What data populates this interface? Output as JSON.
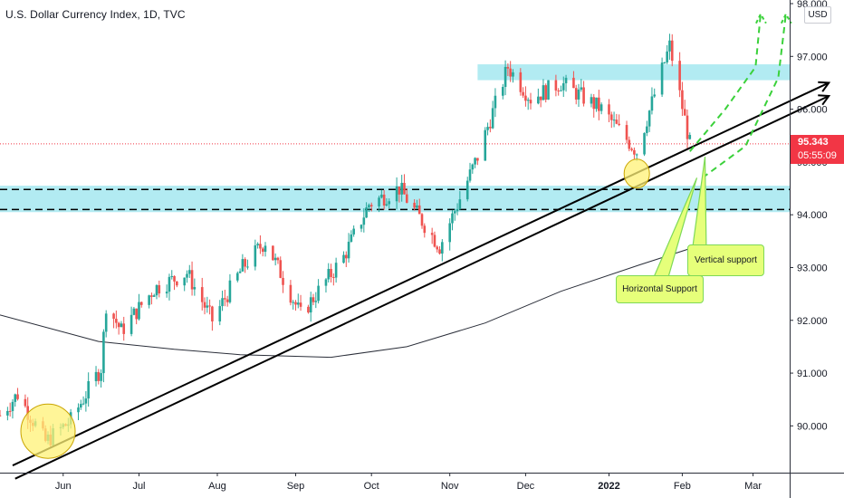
{
  "header": {
    "title": "U.S. Dollar Currency Index, 1D, TVC",
    "currency": "USD"
  },
  "price_box": {
    "price": "95.343",
    "timer": "05:55:09",
    "color": "#f23645"
  },
  "annotations": {
    "vertical_support": "Vertical support",
    "horizontal_support": "Horizontal Support"
  },
  "colors": {
    "up_candle": "#26a69a",
    "down_candle": "#ef5350",
    "zone": "#b2ebf2",
    "forecast": "#3ad13a",
    "highlight": "#fff176",
    "callout_bg": "#e6ff7a",
    "callout_border": "#7ed957"
  },
  "chart_data": {
    "type": "candlestick",
    "title": "U.S. Dollar Currency Index, 1D, TVC",
    "ylim": [
      89.2,
      98.0
    ],
    "y_ticks": [
      "98.000",
      "97.000",
      "96.000",
      "95.000",
      "94.000",
      "93.000",
      "92.000",
      "91.000",
      "90.000"
    ],
    "x_ticks": [
      {
        "label": "Jun",
        "date": "2021-06-01",
        "bold": false
      },
      {
        "label": "Jul",
        "date": "2021-07-01",
        "bold": false
      },
      {
        "label": "Aug",
        "date": "2021-08-01",
        "bold": false
      },
      {
        "label": "Sep",
        "date": "2021-09-01",
        "bold": false
      },
      {
        "label": "Oct",
        "date": "2021-10-01",
        "bold": false
      },
      {
        "label": "Nov",
        "date": "2021-11-01",
        "bold": false
      },
      {
        "label": "Dec",
        "date": "2021-12-01",
        "bold": false
      },
      {
        "label": "2022",
        "date": "2022-01-03",
        "bold": true
      },
      {
        "label": "Feb",
        "date": "2022-02-01",
        "bold": false
      },
      {
        "label": "Mar",
        "date": "2022-03-01",
        "bold": false
      }
    ],
    "date_range": [
      "2021-05-07",
      "2022-04-06"
    ],
    "last_price": 95.343,
    "horizontal_line": {
      "value": 95.343
    },
    "close_keypoints": [
      {
        "date": "2021-05-07",
        "value": 90.2
      },
      {
        "date": "2021-05-14",
        "value": 90.6
      },
      {
        "date": "2021-05-25",
        "value": 89.7
      },
      {
        "date": "2021-06-04",
        "value": 90.1
      },
      {
        "date": "2021-06-16",
        "value": 91.1
      },
      {
        "date": "2021-06-18",
        "value": 92.3
      },
      {
        "date": "2021-06-24",
        "value": 91.8
      },
      {
        "date": "2021-07-07",
        "value": 92.6
      },
      {
        "date": "2021-07-20",
        "value": 92.9
      },
      {
        "date": "2021-07-30",
        "value": 92.0
      },
      {
        "date": "2021-08-11",
        "value": 93.0
      },
      {
        "date": "2021-08-20",
        "value": 93.5
      },
      {
        "date": "2021-09-03",
        "value": 92.1
      },
      {
        "date": "2021-09-20",
        "value": 93.2
      },
      {
        "date": "2021-09-30",
        "value": 94.2
      },
      {
        "date": "2021-10-12",
        "value": 94.5
      },
      {
        "date": "2021-10-28",
        "value": 93.4
      },
      {
        "date": "2021-11-12",
        "value": 95.1
      },
      {
        "date": "2021-11-24",
        "value": 96.8
      },
      {
        "date": "2021-12-03",
        "value": 96.2
      },
      {
        "date": "2021-12-15",
        "value": 96.5
      },
      {
        "date": "2021-12-31",
        "value": 96.0
      },
      {
        "date": "2022-01-14",
        "value": 95.2
      },
      {
        "date": "2022-01-27",
        "value": 97.2
      },
      {
        "date": "2022-02-04",
        "value": 95.343
      }
    ],
    "moving_average": [
      {
        "date": "2021-05-07",
        "value": 92.1
      },
      {
        "date": "2021-06-15",
        "value": 91.6
      },
      {
        "date": "2021-07-15",
        "value": 91.45
      },
      {
        "date": "2021-08-10",
        "value": 91.35
      },
      {
        "date": "2021-09-15",
        "value": 91.3
      },
      {
        "date": "2021-10-15",
        "value": 91.5
      },
      {
        "date": "2021-11-15",
        "value": 91.95
      },
      {
        "date": "2021-12-15",
        "value": 92.55
      },
      {
        "date": "2022-01-15",
        "value": 93.05
      },
      {
        "date": "2022-02-10",
        "value": 93.45
      }
    ],
    "support_zones": [
      {
        "from": 96.55,
        "to": 96.85,
        "start": "2021-11-12"
      },
      {
        "from": 94.05,
        "to": 94.55,
        "start": "2021-05-07"
      }
    ],
    "dashed_levels": [
      94.48,
      94.1
    ],
    "trendlines": [
      {
        "from": {
          "date": "2021-05-12",
          "value": 89.25
        },
        "to": {
          "date": "2022-03-31",
          "value": 96.5
        }
      },
      {
        "from": {
          "date": "2021-05-13",
          "value": 89.0
        },
        "to": {
          "date": "2022-03-31",
          "value": 96.25
        }
      }
    ],
    "highlight_circles": [
      {
        "date": "2021-05-26",
        "value": 89.9
      },
      {
        "date": "2022-01-14",
        "value": 94.78
      }
    ],
    "forecast_paths": [
      [
        {
          "date": "2022-02-04",
          "value": 95.2
        },
        {
          "date": "2022-02-18",
          "value": 96.0
        },
        {
          "date": "2022-03-02",
          "value": 96.8
        },
        {
          "date": "2022-03-04",
          "value": 97.8
        }
      ],
      [
        {
          "date": "2022-02-09",
          "value": 94.7
        },
        {
          "date": "2022-02-26",
          "value": 95.3
        },
        {
          "date": "2022-03-11",
          "value": 96.6
        },
        {
          "date": "2022-03-14",
          "value": 97.8
        }
      ]
    ],
    "callout_pointers": [
      {
        "label": "Vertical support",
        "points": [
          {
            "date": "2022-02-10",
            "value": 95.1
          }
        ]
      },
      {
        "label": "Horizontal Support",
        "points": [
          {
            "date": "2022-02-10",
            "value": 94.7
          }
        ]
      }
    ]
  }
}
